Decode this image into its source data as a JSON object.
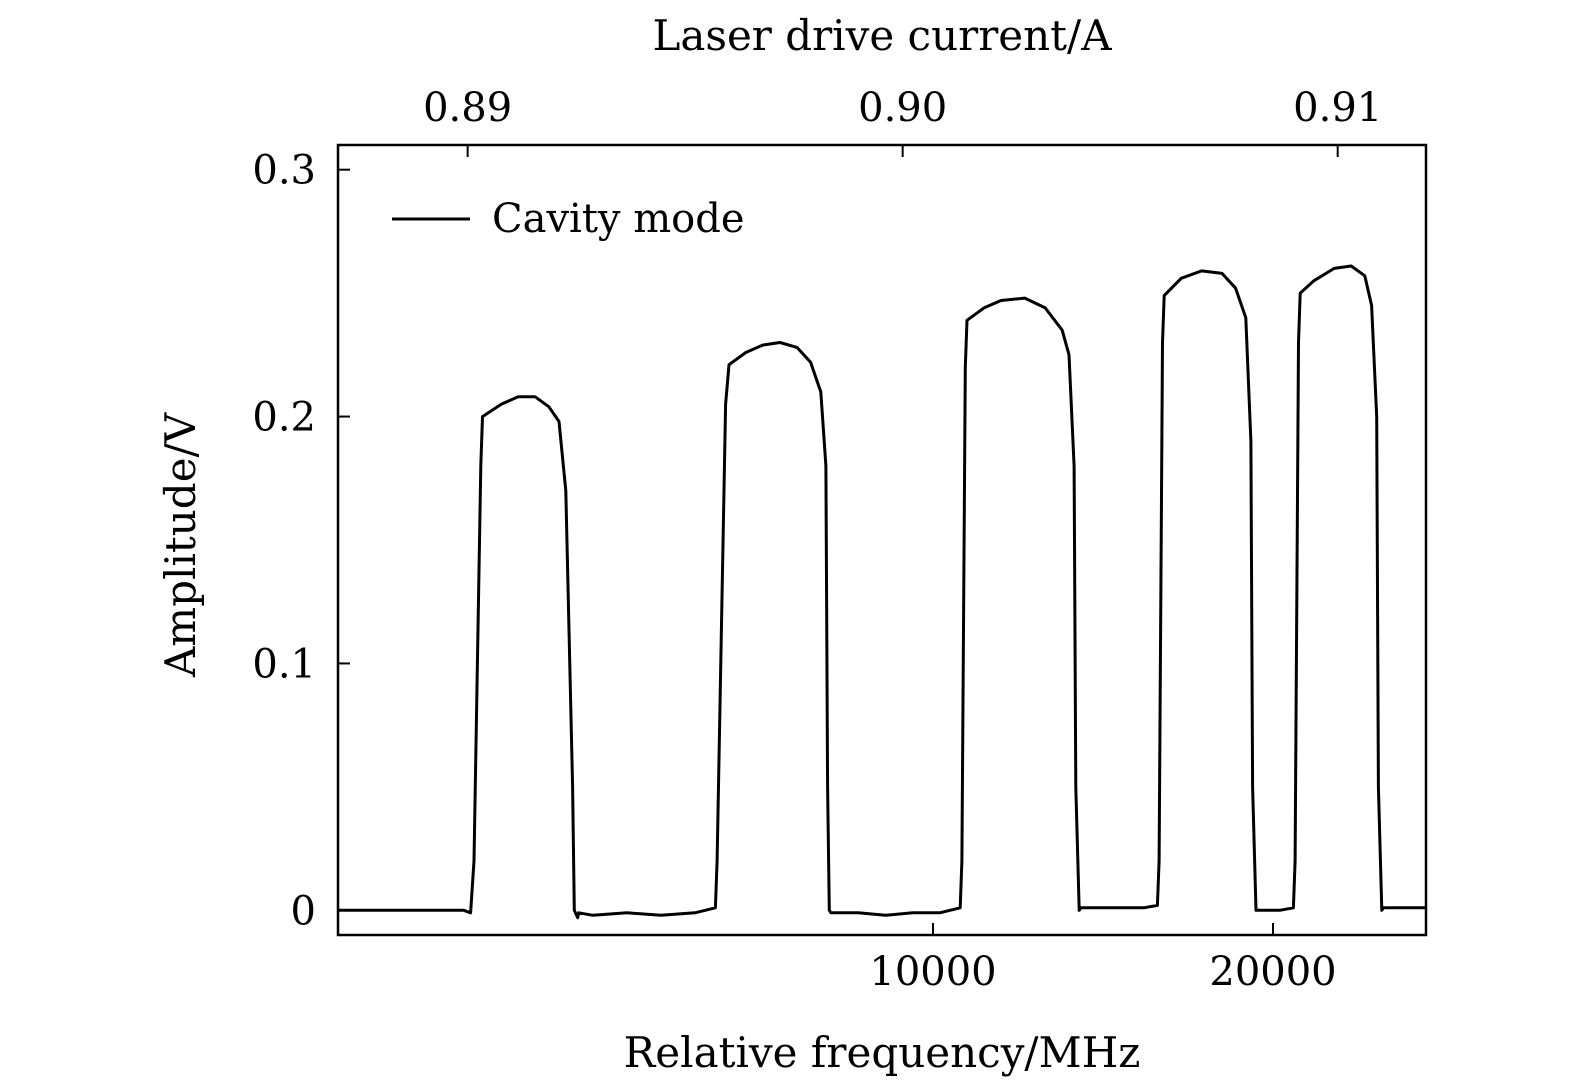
{
  "chart_data": {
    "type": "line",
    "title": "",
    "xlabel": "Relative frequency/MHz",
    "ylabel": "Amplitude/V",
    "x2label": "Laser drive current/A",
    "xlim": [
      -7500,
      24500
    ],
    "ylim": [
      -0.01,
      0.31
    ],
    "x2lim": [
      0.88702,
      0.91203
    ],
    "xticks": [
      10000,
      20000
    ],
    "xtick_labels": [
      "10000",
      "20000"
    ],
    "yticks": [
      0,
      0.1,
      0.2,
      0.3
    ],
    "ytick_labels": [
      "0",
      "0.1",
      "0.2",
      "0.3"
    ],
    "x2ticks": [
      0.89,
      0.9,
      0.91
    ],
    "x2tick_labels": [
      "0.89",
      "0.90",
      "0.91"
    ],
    "grid": false,
    "legend": {
      "position": "top-left",
      "entries": [
        "Cavity mode"
      ]
    },
    "series": [
      {
        "name": "Cavity mode",
        "color": "#000000",
        "x": [
          -7500,
          -5000,
          -3800,
          -3600,
          -3500,
          -3300,
          -3250,
          -2700,
          -2200,
          -1700,
          -1300,
          -1000,
          -800,
          -600,
          -550,
          -450,
          -420,
          0,
          1000,
          2000,
          3000,
          3600,
          3650,
          3900,
          4000,
          4500,
          5000,
          5500,
          6000,
          6400,
          6700,
          6850,
          6900,
          6950,
          7000,
          7800,
          8600,
          9400,
          10200,
          10800,
          10850,
          10950,
          11000,
          11500,
          12000,
          12700,
          13300,
          13800,
          14000,
          14150,
          14200,
          14300,
          14350,
          15300,
          16200,
          16600,
          16650,
          16750,
          16800,
          17300,
          17900,
          18500,
          18900,
          19200,
          19350,
          19400,
          19500,
          19550,
          20200,
          20600,
          20650,
          20750,
          20800,
          21200,
          21800,
          22300,
          22700,
          22900,
          23050,
          23100,
          23200,
          23250,
          24500
        ],
        "y": [
          0,
          0,
          0,
          -0.001,
          0.02,
          0.18,
          0.2,
          0.205,
          0.208,
          0.208,
          0.204,
          0.198,
          0.17,
          0.05,
          0,
          -0.003,
          -0.001,
          -0.002,
          -0.001,
          -0.002,
          -0.001,
          0.001,
          0.02,
          0.205,
          0.221,
          0.226,
          0.229,
          0.23,
          0.228,
          0.222,
          0.21,
          0.18,
          0.05,
          0,
          -0.001,
          -0.001,
          -0.002,
          -0.001,
          -0.001,
          0.001,
          0.02,
          0.22,
          0.239,
          0.244,
          0.247,
          0.248,
          0.244,
          0.235,
          0.225,
          0.18,
          0.05,
          0,
          0.001,
          0.001,
          0.001,
          0.002,
          0.02,
          0.23,
          0.249,
          0.256,
          0.259,
          0.258,
          0.252,
          0.24,
          0.19,
          0.05,
          0,
          0,
          0,
          0.001,
          0.02,
          0.23,
          0.25,
          0.255,
          0.26,
          0.261,
          0.257,
          0.245,
          0.2,
          0.05,
          0,
          0.001,
          0.001
        ]
      }
    ]
  }
}
